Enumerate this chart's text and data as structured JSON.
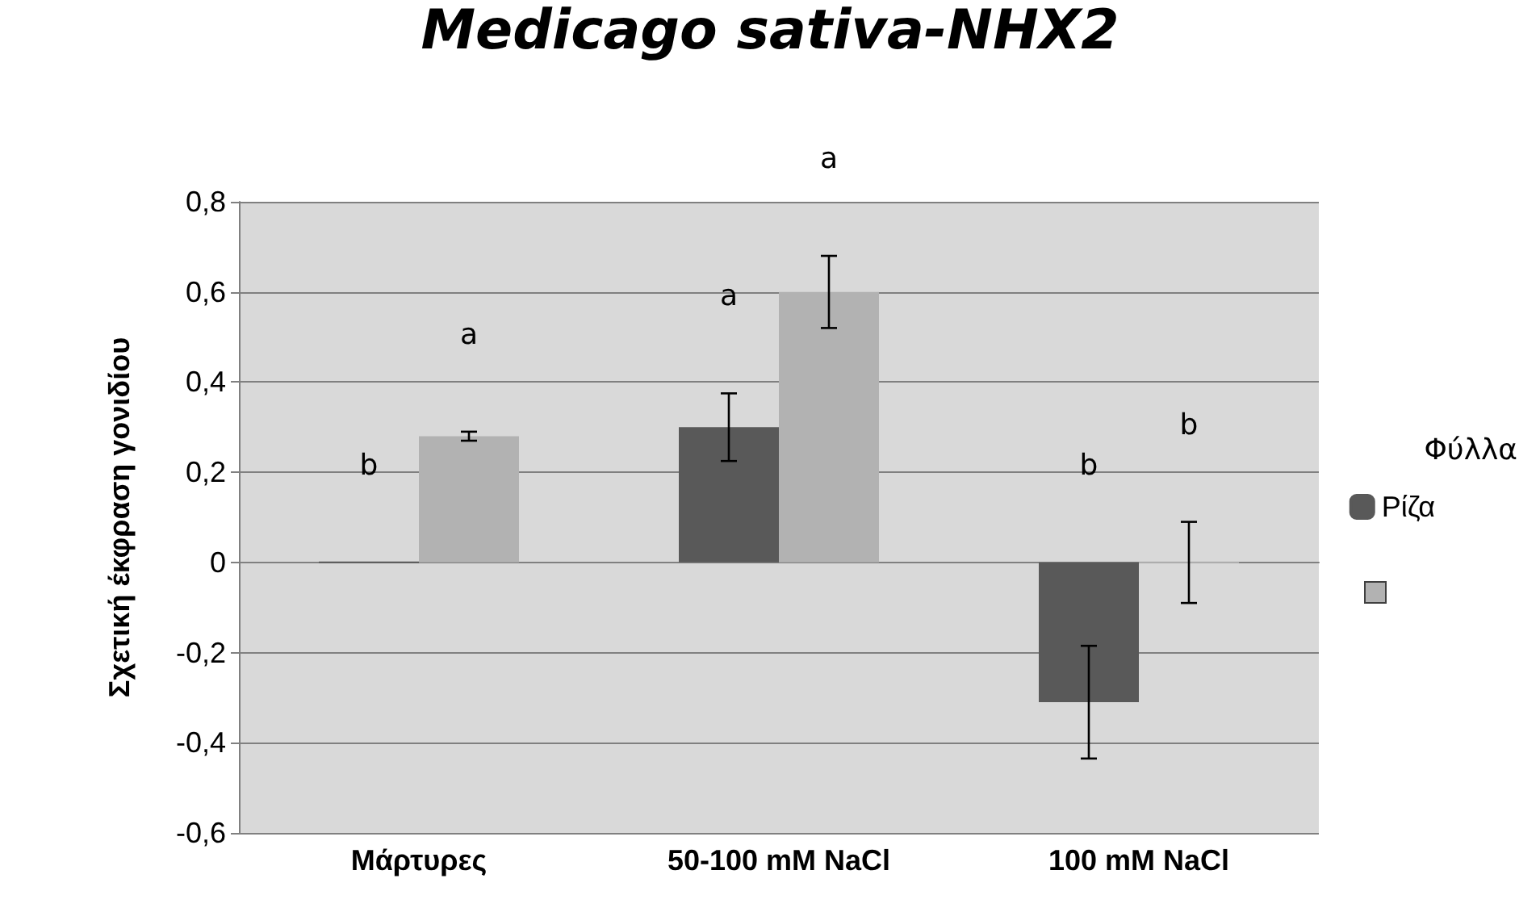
{
  "chart_data": {
    "type": "bar",
    "title": "Medicago sativa-NHX2",
    "ylabel": "Σχετική έκφραση γονιδίου",
    "legend_title": "Φύλλα",
    "categories": [
      "Μάρτυρες",
      "50-100 mM NaCl",
      "100 mM NaCl"
    ],
    "series": [
      {
        "name": "Ρίζα",
        "color": "#595959",
        "values": [
          0,
          0.3,
          -0.31
        ],
        "errors": [
          null,
          0.075,
          0.125
        ]
      },
      {
        "color": "#b2b2b2",
        "values": [
          0.28,
          0.6,
          0
        ],
        "errors": [
          0.01,
          0.08,
          0.09
        ]
      }
    ],
    "ylim": [
      -0.6,
      0.8
    ],
    "yticks": [
      {
        "value": -0.6,
        "label": "-0,6"
      },
      {
        "value": -0.4,
        "label": "-0,4"
      },
      {
        "value": -0.2,
        "label": "-0,2"
      },
      0,
      {
        "value": 0.2,
        "label": "0,2"
      },
      {
        "value": 0.4,
        "label": "0,4"
      },
      {
        "value": 0.6,
        "label": "0,6"
      },
      {
        "value": 0.8,
        "label": "0,8"
      }
    ],
    "grid": "y",
    "legend": "right",
    "annotations": [
      "b",
      "a",
      "a",
      "a",
      "b",
      "b"
    ]
  }
}
